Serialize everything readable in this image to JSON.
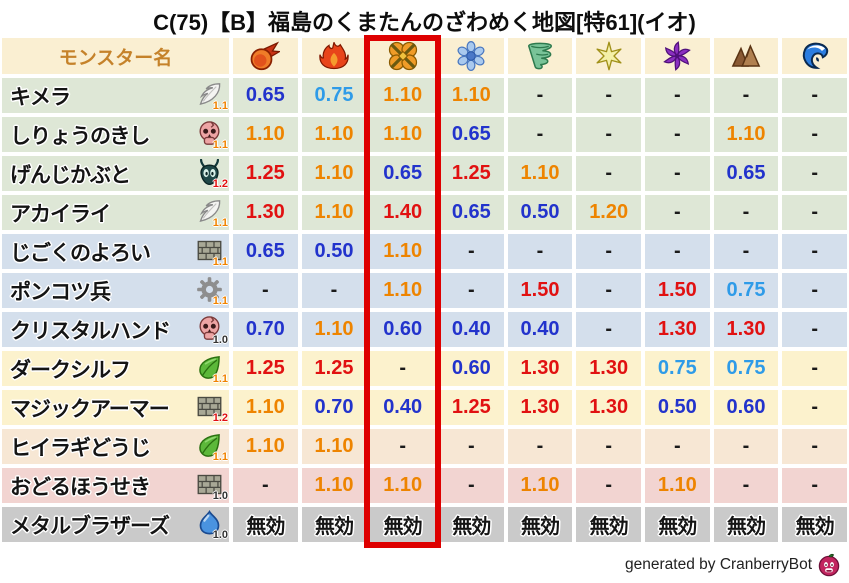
{
  "title": "C(75)【B】福島のくまたんのざわめく地図[特61](イオ)",
  "footer": {
    "credit": "generated by CranberryBot",
    "icon": "cranberry-icon"
  },
  "colors": {
    "header_bg": "#faefd2",
    "header_text": "#c5822a",
    "highlight_border": "#de0000",
    "value_red": "#e11111",
    "value_orange": "#ee8400",
    "value_blue": "#2233cc",
    "value_lightblue": "#2e9be8",
    "value_black": "#1a1a1a",
    "mult_orange": "#f08300",
    "mult_red": "#e01111",
    "mult_black": "#333333",
    "row_bg": {
      "green": "#dee7d6",
      "blue": "#d4dfec",
      "cream": "#fcf2cd",
      "peach": "#f7e7d4",
      "pink": "#f2d4d1",
      "gray": "#cacaca"
    }
  },
  "table": {
    "name_header": "モンスター名",
    "highlighted_column_index": 2,
    "elements": [
      {
        "name": "fireball",
        "icon": "fireball-icon"
      },
      {
        "name": "flame",
        "icon": "flame-icon"
      },
      {
        "name": "explosion",
        "icon": "explosion-icon"
      },
      {
        "name": "ice",
        "icon": "snowflake-icon"
      },
      {
        "name": "wind",
        "icon": "tornado-icon"
      },
      {
        "name": "lightning",
        "icon": "sparkle-icon"
      },
      {
        "name": "dark",
        "icon": "pinwheel-icon"
      },
      {
        "name": "rock",
        "icon": "mountain-icon"
      },
      {
        "name": "wave",
        "icon": "wave-icon"
      }
    ],
    "rows": [
      {
        "name": "キメラ",
        "type_icon": "wing-icon",
        "multiplier": "1.1",
        "multiplier_color": "orange",
        "bg": "green",
        "values": [
          {
            "text": "0.65",
            "color": "blue"
          },
          {
            "text": "0.75",
            "color": "lightblue"
          },
          {
            "text": "1.10",
            "color": "orange"
          },
          {
            "text": "1.10",
            "color": "orange"
          },
          {
            "text": "-",
            "color": "black"
          },
          {
            "text": "-",
            "color": "black"
          },
          {
            "text": "-",
            "color": "black"
          },
          {
            "text": "-",
            "color": "black"
          },
          {
            "text": "-",
            "color": "black"
          }
        ]
      },
      {
        "name": "しりょうのきし",
        "type_icon": "skull-icon",
        "multiplier": "1.1",
        "multiplier_color": "orange",
        "bg": "green",
        "values": [
          {
            "text": "1.10",
            "color": "orange"
          },
          {
            "text": "1.10",
            "color": "orange"
          },
          {
            "text": "1.10",
            "color": "orange"
          },
          {
            "text": "0.65",
            "color": "blue"
          },
          {
            "text": "-",
            "color": "black"
          },
          {
            "text": "-",
            "color": "black"
          },
          {
            "text": "-",
            "color": "black"
          },
          {
            "text": "1.10",
            "color": "orange"
          },
          {
            "text": "-",
            "color": "black"
          }
        ]
      },
      {
        "name": "げんじかぶと",
        "type_icon": "bug-icon",
        "multiplier": "1.2",
        "multiplier_color": "red",
        "bg": "green",
        "values": [
          {
            "text": "1.25",
            "color": "red"
          },
          {
            "text": "1.10",
            "color": "orange"
          },
          {
            "text": "0.65",
            "color": "blue"
          },
          {
            "text": "1.25",
            "color": "red"
          },
          {
            "text": "1.10",
            "color": "orange"
          },
          {
            "text": "-",
            "color": "black"
          },
          {
            "text": "-",
            "color": "black"
          },
          {
            "text": "0.65",
            "color": "blue"
          },
          {
            "text": "-",
            "color": "black"
          }
        ]
      },
      {
        "name": "アカイライ",
        "type_icon": "wing-icon",
        "multiplier": "1.1",
        "multiplier_color": "orange",
        "bg": "green",
        "values": [
          {
            "text": "1.30",
            "color": "red"
          },
          {
            "text": "1.10",
            "color": "orange"
          },
          {
            "text": "1.40",
            "color": "red"
          },
          {
            "text": "0.65",
            "color": "blue"
          },
          {
            "text": "0.50",
            "color": "blue"
          },
          {
            "text": "1.20",
            "color": "orange"
          },
          {
            "text": "-",
            "color": "black"
          },
          {
            "text": "-",
            "color": "black"
          },
          {
            "text": "-",
            "color": "black"
          }
        ]
      },
      {
        "name": "じごくのよろい",
        "type_icon": "brick-icon",
        "multiplier": "1.1",
        "multiplier_color": "orange",
        "bg": "blue",
        "values": [
          {
            "text": "0.65",
            "color": "blue"
          },
          {
            "text": "0.50",
            "color": "blue"
          },
          {
            "text": "1.10",
            "color": "orange"
          },
          {
            "text": "-",
            "color": "black"
          },
          {
            "text": "-",
            "color": "black"
          },
          {
            "text": "-",
            "color": "black"
          },
          {
            "text": "-",
            "color": "black"
          },
          {
            "text": "-",
            "color": "black"
          },
          {
            "text": "-",
            "color": "black"
          }
        ]
      },
      {
        "name": "ポンコツ兵",
        "type_icon": "gear-icon",
        "multiplier": "1.1",
        "multiplier_color": "orange",
        "bg": "blue",
        "values": [
          {
            "text": "-",
            "color": "black"
          },
          {
            "text": "-",
            "color": "black"
          },
          {
            "text": "1.10",
            "color": "orange"
          },
          {
            "text": "-",
            "color": "black"
          },
          {
            "text": "1.50",
            "color": "red"
          },
          {
            "text": "-",
            "color": "black"
          },
          {
            "text": "1.50",
            "color": "red"
          },
          {
            "text": "0.75",
            "color": "lightblue"
          },
          {
            "text": "-",
            "color": "black"
          }
        ]
      },
      {
        "name": "クリスタルハンド",
        "type_icon": "skull-icon",
        "multiplier": "1.0",
        "multiplier_color": "black",
        "bg": "blue",
        "values": [
          {
            "text": "0.70",
            "color": "blue"
          },
          {
            "text": "1.10",
            "color": "orange"
          },
          {
            "text": "0.60",
            "color": "blue"
          },
          {
            "text": "0.40",
            "color": "blue"
          },
          {
            "text": "0.40",
            "color": "blue"
          },
          {
            "text": "-",
            "color": "black"
          },
          {
            "text": "1.30",
            "color": "red"
          },
          {
            "text": "1.30",
            "color": "red"
          },
          {
            "text": "-",
            "color": "black"
          }
        ]
      },
      {
        "name": "ダークシルフ",
        "type_icon": "leaf-icon",
        "multiplier": "1.1",
        "multiplier_color": "orange",
        "bg": "cream",
        "values": [
          {
            "text": "1.25",
            "color": "red"
          },
          {
            "text": "1.25",
            "color": "red"
          },
          {
            "text": "-",
            "color": "black"
          },
          {
            "text": "0.60",
            "color": "blue"
          },
          {
            "text": "1.30",
            "color": "red"
          },
          {
            "text": "1.30",
            "color": "red"
          },
          {
            "text": "0.75",
            "color": "lightblue"
          },
          {
            "text": "0.75",
            "color": "lightblue"
          },
          {
            "text": "-",
            "color": "black"
          }
        ]
      },
      {
        "name": "マジックアーマー",
        "type_icon": "brick-icon",
        "multiplier": "1.2",
        "multiplier_color": "red",
        "bg": "cream",
        "values": [
          {
            "text": "1.10",
            "color": "orange"
          },
          {
            "text": "0.70",
            "color": "blue"
          },
          {
            "text": "0.40",
            "color": "blue"
          },
          {
            "text": "1.25",
            "color": "red"
          },
          {
            "text": "1.30",
            "color": "red"
          },
          {
            "text": "1.30",
            "color": "red"
          },
          {
            "text": "0.50",
            "color": "blue"
          },
          {
            "text": "0.60",
            "color": "blue"
          },
          {
            "text": "-",
            "color": "black"
          }
        ]
      },
      {
        "name": "ヒイラギどうじ",
        "type_icon": "leaf-icon",
        "multiplier": "1.1",
        "multiplier_color": "orange",
        "bg": "peach",
        "values": [
          {
            "text": "1.10",
            "color": "orange"
          },
          {
            "text": "1.10",
            "color": "orange"
          },
          {
            "text": "-",
            "color": "black"
          },
          {
            "text": "-",
            "color": "black"
          },
          {
            "text": "-",
            "color": "black"
          },
          {
            "text": "-",
            "color": "black"
          },
          {
            "text": "-",
            "color": "black"
          },
          {
            "text": "-",
            "color": "black"
          },
          {
            "text": "-",
            "color": "black"
          }
        ]
      },
      {
        "name": "おどるほうせき",
        "type_icon": "brick-icon",
        "multiplier": "1.0",
        "multiplier_color": "black",
        "bg": "pink",
        "values": [
          {
            "text": "-",
            "color": "black"
          },
          {
            "text": "1.10",
            "color": "orange"
          },
          {
            "text": "1.10",
            "color": "orange"
          },
          {
            "text": "-",
            "color": "black"
          },
          {
            "text": "1.10",
            "color": "orange"
          },
          {
            "text": "-",
            "color": "black"
          },
          {
            "text": "1.10",
            "color": "orange"
          },
          {
            "text": "-",
            "color": "black"
          },
          {
            "text": "-",
            "color": "black"
          }
        ]
      },
      {
        "name": "メタルブラザーズ",
        "type_icon": "slime-icon",
        "multiplier": "1.0",
        "multiplier_color": "black",
        "bg": "gray",
        "values": [
          {
            "text": "無効",
            "color": "black"
          },
          {
            "text": "無効",
            "color": "black"
          },
          {
            "text": "無効",
            "color": "black"
          },
          {
            "text": "無効",
            "color": "black"
          },
          {
            "text": "無効",
            "color": "black"
          },
          {
            "text": "無効",
            "color": "black"
          },
          {
            "text": "無効",
            "color": "black"
          },
          {
            "text": "無効",
            "color": "black"
          },
          {
            "text": "無効",
            "color": "black"
          }
        ]
      }
    ]
  }
}
